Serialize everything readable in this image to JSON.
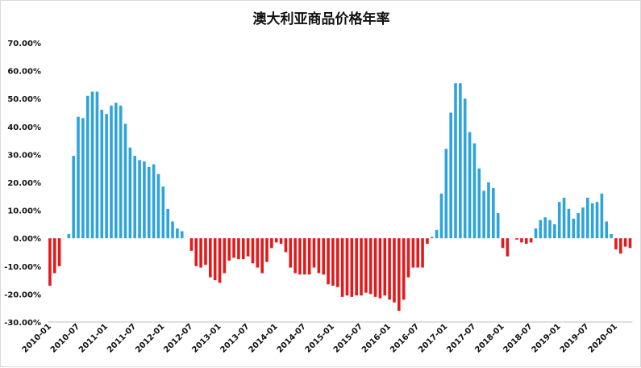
{
  "chart_data": {
    "type": "bar",
    "title": "澳大利亚商品价格年率",
    "xlabel": "",
    "ylabel": "",
    "ylim": [
      -30,
      70
    ],
    "yticks": [
      70,
      60,
      50,
      40,
      30,
      20,
      10,
      0,
      -10,
      -20,
      -30
    ],
    "ytick_labels": [
      "70.00%",
      "60.00%",
      "50.00%",
      "40.00%",
      "30.00%",
      "20.00%",
      "10.00%",
      "0.00%",
      "-10.00%",
      "-20.00%",
      "-30.00%"
    ],
    "x_tick_labels": [
      "2010-01",
      "2010-07",
      "2011-01",
      "2011-07",
      "2012-01",
      "2012-07",
      "2013-01",
      "2013-07",
      "2014-01",
      "2014-07",
      "2015-01",
      "2015-07",
      "2016-01",
      "2016-07",
      "2017-01",
      "2017-07",
      "2018-01",
      "2018-07",
      "2019-01",
      "2019-07",
      "2020-01"
    ],
    "start_month": "2010-01",
    "grid": false,
    "legend": "none",
    "colors": {
      "positive": "#2ea3dc",
      "negative": "#e3191b"
    },
    "values": [
      -17.0,
      -12.5,
      -10.0,
      0.0,
      1.5,
      29.5,
      43.5,
      43.0,
      51.0,
      52.5,
      52.5,
      46.0,
      44.5,
      47.5,
      48.5,
      47.5,
      41.0,
      32.5,
      29.5,
      28.0,
      27.5,
      25.5,
      26.5,
      23.0,
      18.5,
      10.5,
      6.0,
      3.5,
      2.5,
      0.0,
      -4.5,
      -10.0,
      -10.5,
      -9.5,
      -14.0,
      -15.0,
      -16.0,
      -12.5,
      -8.0,
      -7.0,
      -7.5,
      -7.5,
      -6.5,
      -9.0,
      -10.5,
      -12.5,
      -8.5,
      -3.5,
      -1.5,
      -2.0,
      -5.0,
      -10.5,
      -12.5,
      -13.0,
      -13.0,
      -13.0,
      -10.5,
      -12.5,
      -13.0,
      -16.5,
      -17.0,
      -17.5,
      -21.0,
      -20.5,
      -21.0,
      -20.5,
      -20.5,
      -19.5,
      -20.0,
      -21.0,
      -21.5,
      -20.5,
      -22.0,
      -23.0,
      -26.0,
      -22.0,
      -14.0,
      -10.5,
      -10.5,
      -10.5,
      -2.0,
      0.5,
      3.0,
      16.0,
      32.0,
      45.0,
      55.5,
      55.5,
      50.0,
      38.0,
      34.0,
      25.0,
      17.0,
      20.0,
      18.0,
      9.0,
      -3.5,
      -6.5,
      0.0,
      -0.5,
      -1.5,
      -2.0,
      -1.5,
      3.5,
      6.5,
      7.5,
      6.5,
      5.0,
      13.0,
      14.5,
      10.5,
      7.0,
      9.0,
      11.0,
      14.5,
      12.5,
      13.0,
      16.0,
      6.0,
      1.5,
      -4.0,
      -5.5,
      -3.0,
      -3.5
    ]
  }
}
